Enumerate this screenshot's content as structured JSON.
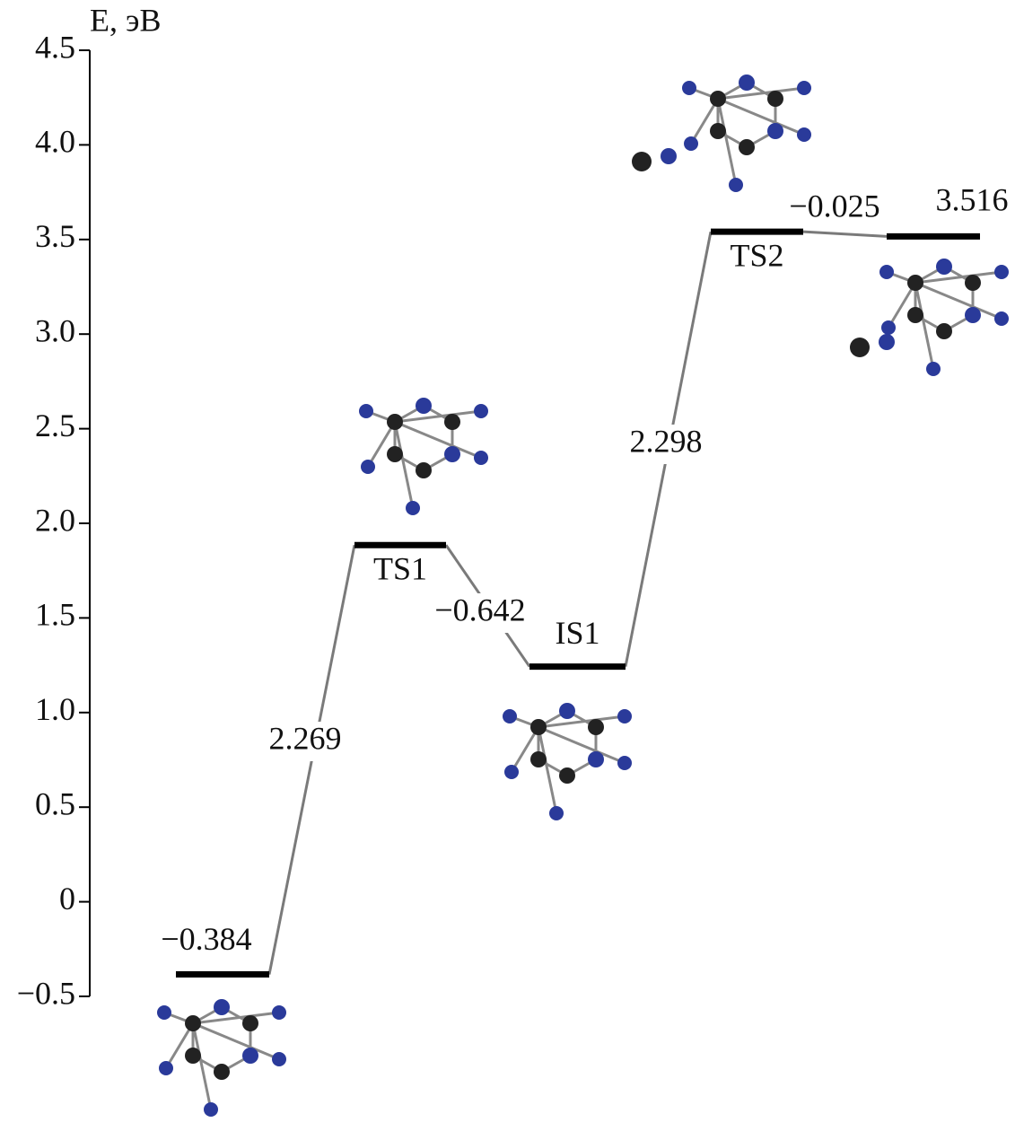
{
  "chart_data": {
    "type": "energy_diagram",
    "y_label": "E, эВ",
    "ylim": [
      -0.5,
      4.5
    ],
    "yticks": [
      {
        "value": -0.5,
        "label": "−0.5"
      },
      0,
      0.5,
      {
        "value": 1,
        "label": "1.0"
      },
      1.5,
      {
        "value": 2,
        "label": "2.0"
      },
      2.5,
      {
        "value": 3,
        "label": "3.0"
      },
      3.5,
      {
        "value": 4,
        "label": "4.0"
      },
      4.5
    ],
    "levels": {
      "names": [
        null,
        "TS1",
        "IS1",
        "TS2",
        null
      ],
      "values": [
        -0.384,
        1.885,
        1.243,
        3.541,
        3.516
      ],
      "value_labels": [
        "−0.384",
        null,
        null,
        null,
        "3.516"
      ],
      "color": "#000000"
    },
    "transitions": {
      "values": [
        2.269,
        -0.642,
        2.298,
        -0.025
      ],
      "value_labels": [
        "2.269",
        "−0.642",
        "2.298",
        "−0.025"
      ],
      "color": "#7a7a7a"
    }
  }
}
